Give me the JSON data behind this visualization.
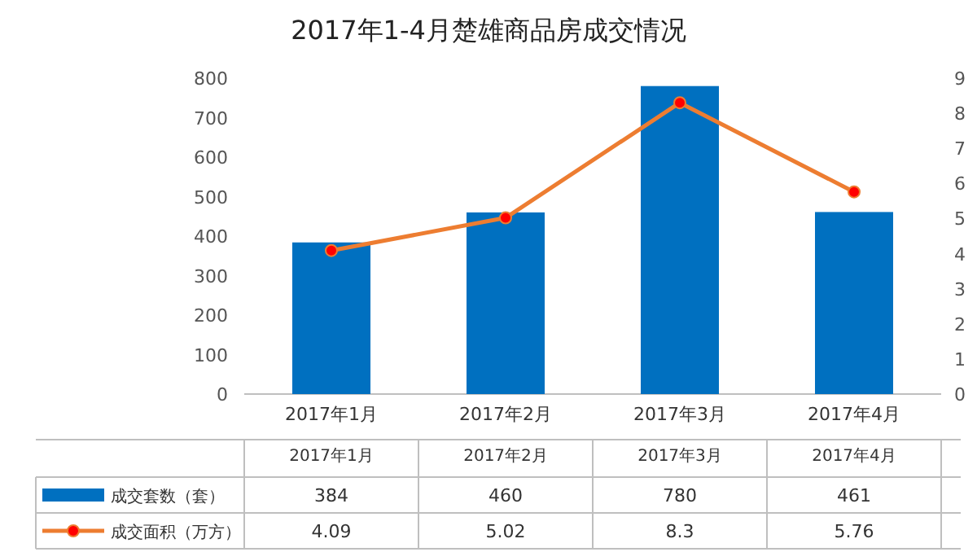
{
  "chart_data": {
    "type": "bar",
    "title": "2017年1-4月楚雄商品房成交情况",
    "categories": [
      "2017年1月",
      "2017年2月",
      "2017年3月",
      "2017年4月"
    ],
    "series": [
      {
        "name": "成交套数（套）",
        "color": "#0070c0",
        "values": [
          384,
          460,
          780,
          461
        ]
      },
      {
        "name": "成交面积（万方）",
        "type": "line",
        "axis": "y2",
        "color": "#ed7d31",
        "values": [
          4.09,
          5.02,
          8.3,
          5.76
        ]
      }
    ],
    "marker": "circle",
    "ylim": [
      0,
      800
    ],
    "yticks": [
      0,
      100,
      200,
      300,
      400,
      500,
      600,
      700,
      800
    ],
    "y2lim": [
      0,
      9
    ],
    "y2ticks": [
      0,
      1,
      2,
      3,
      4,
      5,
      6,
      7,
      8,
      9
    ],
    "data_labels": true,
    "legend": "bottom",
    "grid": false
  }
}
